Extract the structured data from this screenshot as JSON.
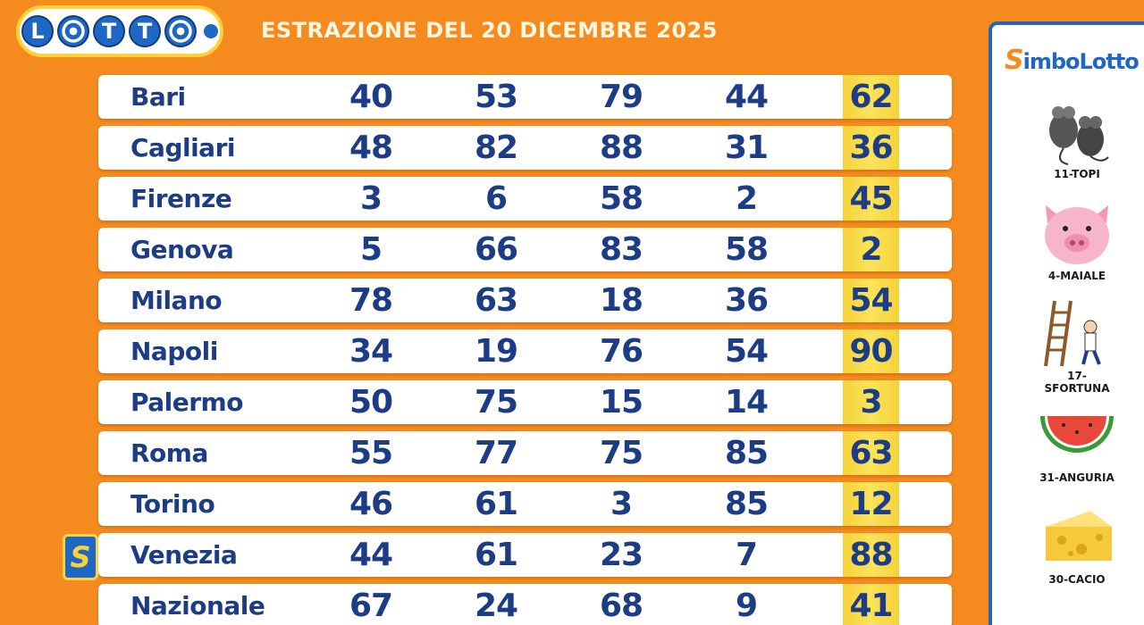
{
  "header": {
    "logo_letters": [
      "L",
      "T",
      "T"
    ],
    "title": "ESTRAZIONE DEL 20 DICEMBRE 2025"
  },
  "draws": [
    {
      "city": "Bari",
      "numbers": [
        "40",
        "53",
        "79",
        "44",
        "62"
      ]
    },
    {
      "city": "Cagliari",
      "numbers": [
        "48",
        "82",
        "88",
        "31",
        "36"
      ]
    },
    {
      "city": "Firenze",
      "numbers": [
        "3",
        "6",
        "58",
        "2",
        "45"
      ]
    },
    {
      "city": "Genova",
      "numbers": [
        "5",
        "66",
        "83",
        "58",
        "2"
      ]
    },
    {
      "city": "Milano",
      "numbers": [
        "78",
        "63",
        "18",
        "36",
        "54"
      ]
    },
    {
      "city": "Napoli",
      "numbers": [
        "34",
        "19",
        "76",
        "54",
        "90"
      ]
    },
    {
      "city": "Palermo",
      "numbers": [
        "50",
        "75",
        "15",
        "14",
        "3"
      ]
    },
    {
      "city": "Roma",
      "numbers": [
        "55",
        "77",
        "75",
        "85",
        "63"
      ]
    },
    {
      "city": "Torino",
      "numbers": [
        "46",
        "61",
        "3",
        "85",
        "12"
      ]
    },
    {
      "city": "Venezia",
      "numbers": [
        "44",
        "61",
        "23",
        "7",
        "88"
      ]
    },
    {
      "city": "Nazionale",
      "numbers": [
        "67",
        "24",
        "68",
        "9",
        "41"
      ]
    }
  ],
  "badge": "S",
  "side": {
    "title_s": "S",
    "title_rest": "imboLotto",
    "symbols": [
      {
        "label": "11-TOPI",
        "icon": "mice-icon"
      },
      {
        "label": "4-MAIALE",
        "icon": "pig-icon"
      },
      {
        "label": "17-SFORTUNA",
        "icon": "ladder-icon"
      },
      {
        "label": "31-ANGURIA",
        "icon": "watermelon-icon"
      },
      {
        "label": "30-CACIO",
        "icon": "cheese-icon"
      }
    ]
  },
  "colors": {
    "background": "#f58a1f",
    "text_blue": "#1c3d86",
    "highlight_yellow": "#f7d23a",
    "brand_blue": "#1f67c4"
  }
}
